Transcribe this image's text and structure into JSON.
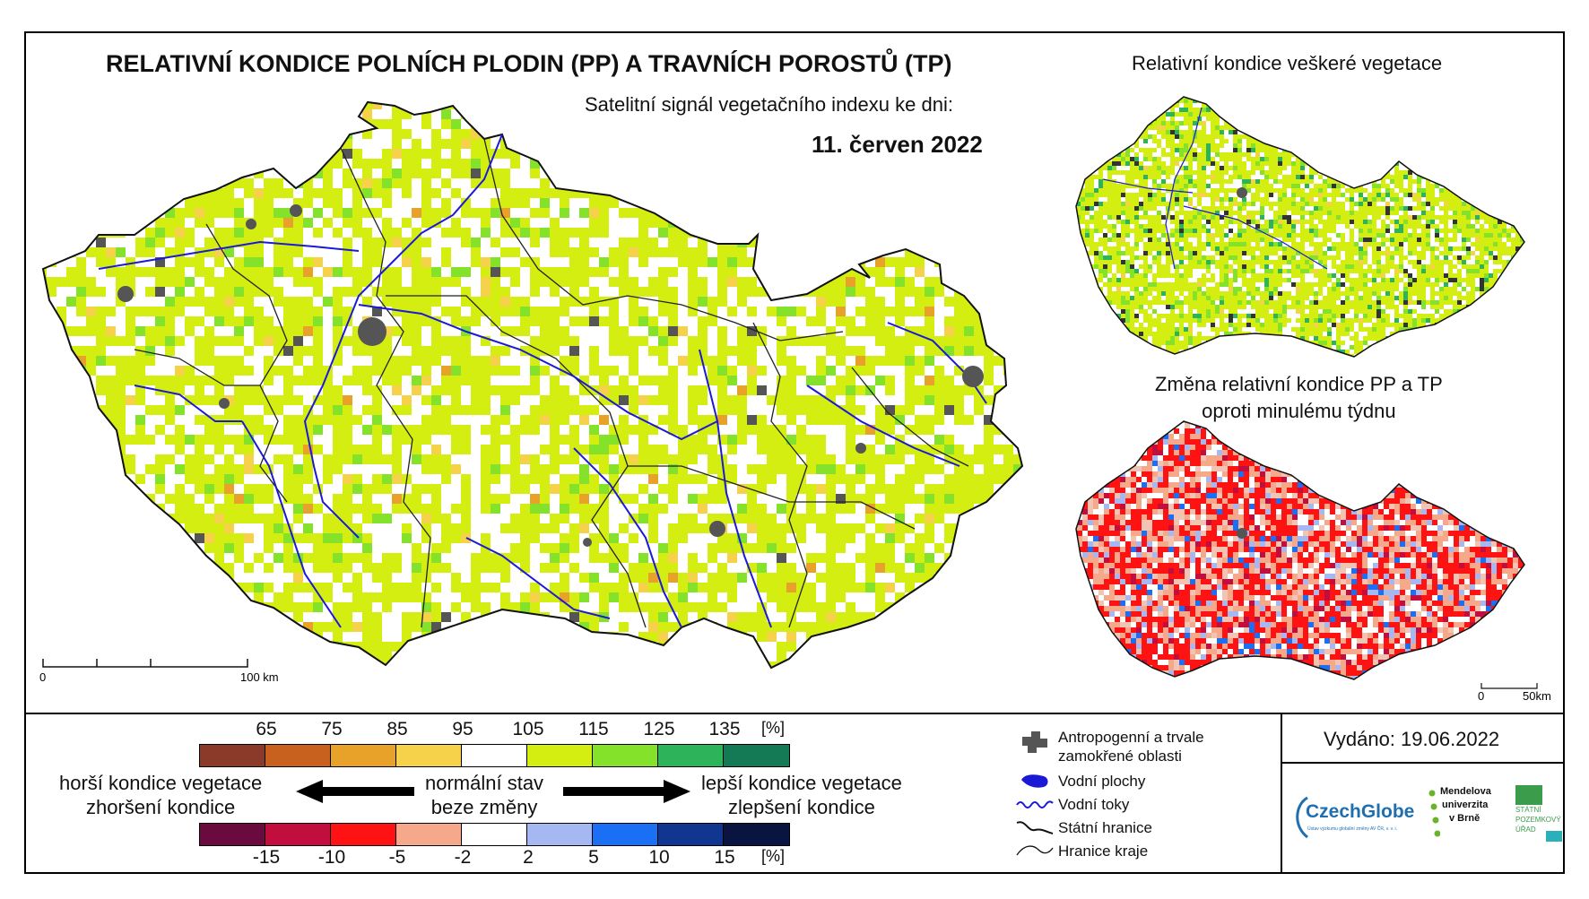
{
  "header": {
    "main_title": "RELATIVNÍ KONDICE POLNÍCH PLODIN (PP) A TRAVNÍCH POROSTŮ (TP)",
    "subtitle": "Satelitní signál vegetačního indexu ke dni:",
    "date": "11. červen 2022"
  },
  "insets": {
    "vegetation_title": "Relativní kondice veškeré vegetace",
    "change_title_line1": "Změna relativní kondice PP a TP",
    "change_title_line2": "oproti minulému týdnu"
  },
  "scalebars": {
    "main_start": "0",
    "main_end": "100 km",
    "inset_start": "0",
    "inset_end": "50km"
  },
  "legend_condition": {
    "ticks": [
      "65",
      "75",
      "85",
      "95",
      "105",
      "115",
      "125",
      "135",
      "[%]"
    ],
    "colors": [
      "#8b3a2a",
      "#c8601e",
      "#e8a22a",
      "#f5d24a",
      "#ffffff",
      "#d4ee12",
      "#84e22a",
      "#2db45a",
      "#137a55"
    ]
  },
  "legend_change": {
    "ticks": [
      "-15",
      "-10",
      "-5",
      "-2",
      "2",
      "5",
      "10",
      "15",
      "[%]"
    ],
    "colors": [
      "#6a0a3e",
      "#c10e3e",
      "#ff1212",
      "#f5a88a",
      "#ffffff",
      "#a6b8f2",
      "#1a6ff5",
      "#11368f",
      "#0a1440"
    ]
  },
  "legend_captions": {
    "worse_1": "horší kondice vegetace",
    "worse_2": "zhoršení kondice",
    "normal_1": "normální stav",
    "normal_2": "beze změny",
    "better_1": "lepší kondice vegetace",
    "better_2": "zlepšení kondice"
  },
  "map_key": {
    "anthropogenic": "Antropogenní a trvale",
    "anthropogenic_2": "zamokřené oblasti",
    "water_bodies": "Vodní plochy",
    "rivers": "Vodní toky",
    "state_border": "Státní hranice",
    "region_border": "Hranice kraje"
  },
  "issued": "Vydáno: 19.06.2022",
  "logos": {
    "czechglobe": "CzechGlobe",
    "czechglobe_sub": "Ústav výzkumu globální změny AV ČR, v. v. i.",
    "mendel_1": "Mendelova",
    "mendel_2": "univerzita",
    "mendel_3": "v Brně",
    "spu_1": "STÁTNÍ",
    "spu_2": "POZEMKOVÝ",
    "spu_3": "ÚŘAD"
  },
  "colors": {
    "border_line": "#000000",
    "river": "#1a1ad6",
    "urban": "#555555",
    "czechglobe_blue": "#1f6fb0",
    "mendel_green": "#6ab42d",
    "spu_green": "#3b9c4b",
    "spu_teal": "#2ab0b8"
  }
}
